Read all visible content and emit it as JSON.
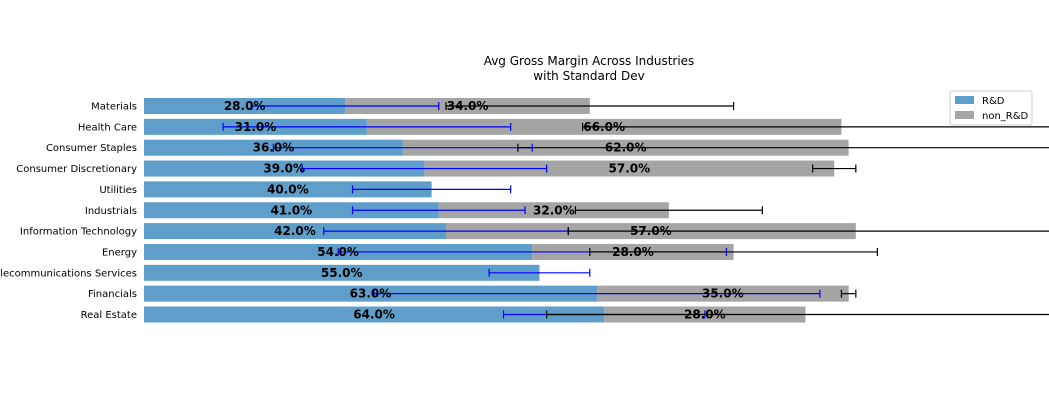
{
  "chart_data": {
    "type": "bar",
    "orientation": "horizontal",
    "stacked": true,
    "title": "Avg Gross Margin Across Industries\nwith Standard Dev",
    "categories": [
      "Materials",
      "Health Care",
      "Consumer Staples",
      "Consumer Discretionary",
      "Utilities",
      "Industrials",
      "Information Technology",
      "Energy",
      "Telecommunications Services",
      "Financials",
      "Real Estate"
    ],
    "series": [
      {
        "name": "R&D",
        "color": "#5f9ecb",
        "errcolor": "#0000ff",
        "values": [
          28,
          31,
          36,
          39,
          40,
          41,
          42,
          54,
          55,
          63,
          64
        ],
        "errors": [
          13,
          20,
          18,
          17,
          11,
          12,
          17,
          27,
          7,
          31,
          14
        ],
        "labels": [
          "28.0%",
          "31.0%",
          "36.0%",
          "39.0%",
          "40.0%",
          "41.0%",
          "42.0%",
          "54.0%",
          "55.0%",
          "63.0%",
          "64.0%"
        ]
      },
      {
        "name": "non_R&D",
        "color": "#a5a5a5",
        "errcolor": "#000000",
        "values": [
          34,
          66,
          62,
          57,
          0,
          32,
          57,
          28,
          0,
          35,
          28
        ],
        "errors": [
          20,
          36,
          46,
          3,
          0,
          13,
          40,
          20,
          0,
          1,
          36
        ],
        "labels": [
          "34.0%",
          "66.0%",
          "62.0%",
          "57.0%",
          "",
          "32.0%",
          "57.0%",
          "28.0%",
          "",
          "35.0%",
          "28.0%"
        ]
      }
    ],
    "xlim": [
      0,
      121
    ],
    "grid": false,
    "axes_visible": false,
    "legend": {
      "placement": "top-right",
      "entries": [
        "R&D",
        "non_R&D"
      ]
    }
  }
}
